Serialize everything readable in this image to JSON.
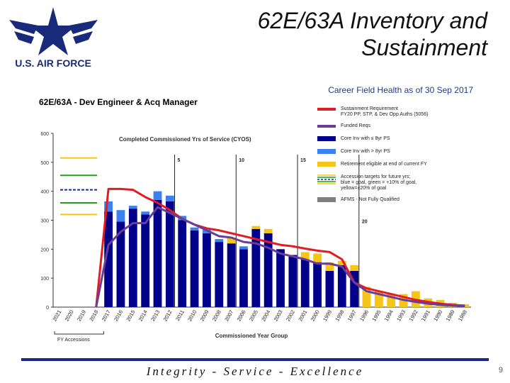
{
  "header": {
    "title_line1": "62E/63A Inventory and",
    "title_line2": "Sustainment",
    "logo_text": "U.S. AIR FORCE"
  },
  "footer": {
    "motto": "Integrity - Service - Excellence",
    "page": "9"
  },
  "chart_data": {
    "type": "bar",
    "title": "62E/63A - Dev Engineer & Acq Manager",
    "subtitle": "Career Field Health as of 30 Sep 2017",
    "inner_title": "Completed Commissioned Yrs of Service (CYOS)",
    "xlabel": "Commissioned Year Group",
    "ylabel": "",
    "ylim": [
      0,
      600
    ],
    "yticks": [
      "0",
      "100",
      "200",
      "300",
      "400",
      "500",
      "600"
    ],
    "bracket_label": "FY Accessions",
    "categories": [
      "2021",
      "2020",
      "2019",
      "2018",
      "2017",
      "2016",
      "2015",
      "2014",
      "2013",
      "2012",
      "2011",
      "2010",
      "2009",
      "2008",
      "2007",
      "2006",
      "2005",
      "2004",
      "2003",
      "2002",
      "2001",
      "2000",
      "1999",
      "1998",
      "1997",
      "1996",
      "1995",
      "1994",
      "1993",
      "1992",
      "1991",
      "1990",
      "1989",
      "1988"
    ],
    "series": [
      {
        "name": "Core Inv with ≤ 8yr PS",
        "color": "#00008b",
        "values": [
          0,
          0,
          0,
          0,
          330,
          295,
          340,
          320,
          370,
          365,
          300,
          265,
          255,
          225,
          220,
          200,
          270,
          255,
          200,
          180,
          165,
          155,
          125,
          145,
          125,
          0,
          0,
          0,
          0,
          0,
          0,
          0,
          0,
          0
        ]
      },
      {
        "name": "Core Inv with > 8yr PS",
        "color": "#3b82f0",
        "values": [
          0,
          0,
          0,
          0,
          35,
          40,
          10,
          10,
          30,
          20,
          15,
          10,
          12,
          10,
          0,
          10,
          0,
          0,
          0,
          0,
          0,
          0,
          0,
          0,
          0,
          0,
          0,
          0,
          0,
          0,
          0,
          0,
          0,
          0
        ]
      },
      {
        "name": "Retirement eligible at end of current FY",
        "color": "#f5c518",
        "values": [
          0,
          0,
          0,
          0,
          0,
          0,
          0,
          0,
          0,
          0,
          0,
          0,
          0,
          0,
          20,
          0,
          10,
          15,
          0,
          0,
          25,
          30,
          30,
          15,
          20,
          70,
          55,
          45,
          45,
          55,
          30,
          25,
          15,
          10
        ]
      }
    ],
    "lines": [
      {
        "name": "Sustainment Requirement FY20 PP, STP, & Dev Opp Auths (5056)",
        "color": "#e31b23",
        "values": [
          null,
          null,
          null,
          0,
          408,
          408,
          405,
          380,
          360,
          335,
          305,
          285,
          272,
          265,
          255,
          245,
          235,
          225,
          215,
          210,
          202,
          195,
          190,
          165,
          85,
          65,
          55,
          45,
          35,
          25,
          18,
          12,
          8,
          5
        ]
      },
      {
        "name": "Funded Reqs",
        "color": "#6a3d9a",
        "values": [
          null,
          null,
          null,
          0,
          215,
          260,
          290,
          290,
          345,
          325,
          305,
          285,
          265,
          245,
          240,
          225,
          220,
          205,
          185,
          175,
          165,
          150,
          150,
          140,
          85,
          55,
          45,
          35,
          25,
          18,
          12,
          8,
          5,
          3
        ]
      }
    ],
    "cyos_markers": [
      {
        "label": "5",
        "index": 9
      },
      {
        "label": "10",
        "index": 14
      },
      {
        "label": "15",
        "index": 19
      },
      {
        "label": "20",
        "index": 24
      }
    ],
    "legend": [
      {
        "label": "Sustainment Requirement",
        "sub": "FY20 PP, STP, & Dev Opp Auths (5056)",
        "kind": "line",
        "color": "#e31b23"
      },
      {
        "label": "Funded Reqs",
        "sub": "",
        "kind": "line",
        "color": "#6a3d9a"
      },
      {
        "label": "Core Inv with ≤ 8yr PS",
        "sub": "",
        "kind": "bar",
        "color": "#00008b"
      },
      {
        "label": "Core Inv with > 8yr PS",
        "sub": "",
        "kind": "bar",
        "color": "#3b82f0"
      },
      {
        "label": "Retirement eligible at end of current FY",
        "sub": "",
        "kind": "bar",
        "color": "#f5c518"
      },
      {
        "label": "Accession targets for future yrs;",
        "sub": "blue = goal, green = +10% of goal,",
        "sub2": "yellow=±20% of goal",
        "kind": "target",
        "color": "#1a2a9a"
      },
      {
        "label": "AFMS - Not Fully Qualified",
        "sub": "",
        "kind": "bar",
        "color": "#808080"
      }
    ],
    "legend_position": "top-right",
    "accession_targets": [
      {
        "color": "#f5c518",
        "value": 515,
        "dash": false
      },
      {
        "color": "#1fa01f",
        "value": 455,
        "dash": false
      },
      {
        "color": "#1a2a9a",
        "value": 405,
        "dash": true
      },
      {
        "color": "#1fa01f",
        "value": 360,
        "dash": false
      },
      {
        "color": "#f5c518",
        "value": 320,
        "dash": false
      }
    ]
  }
}
